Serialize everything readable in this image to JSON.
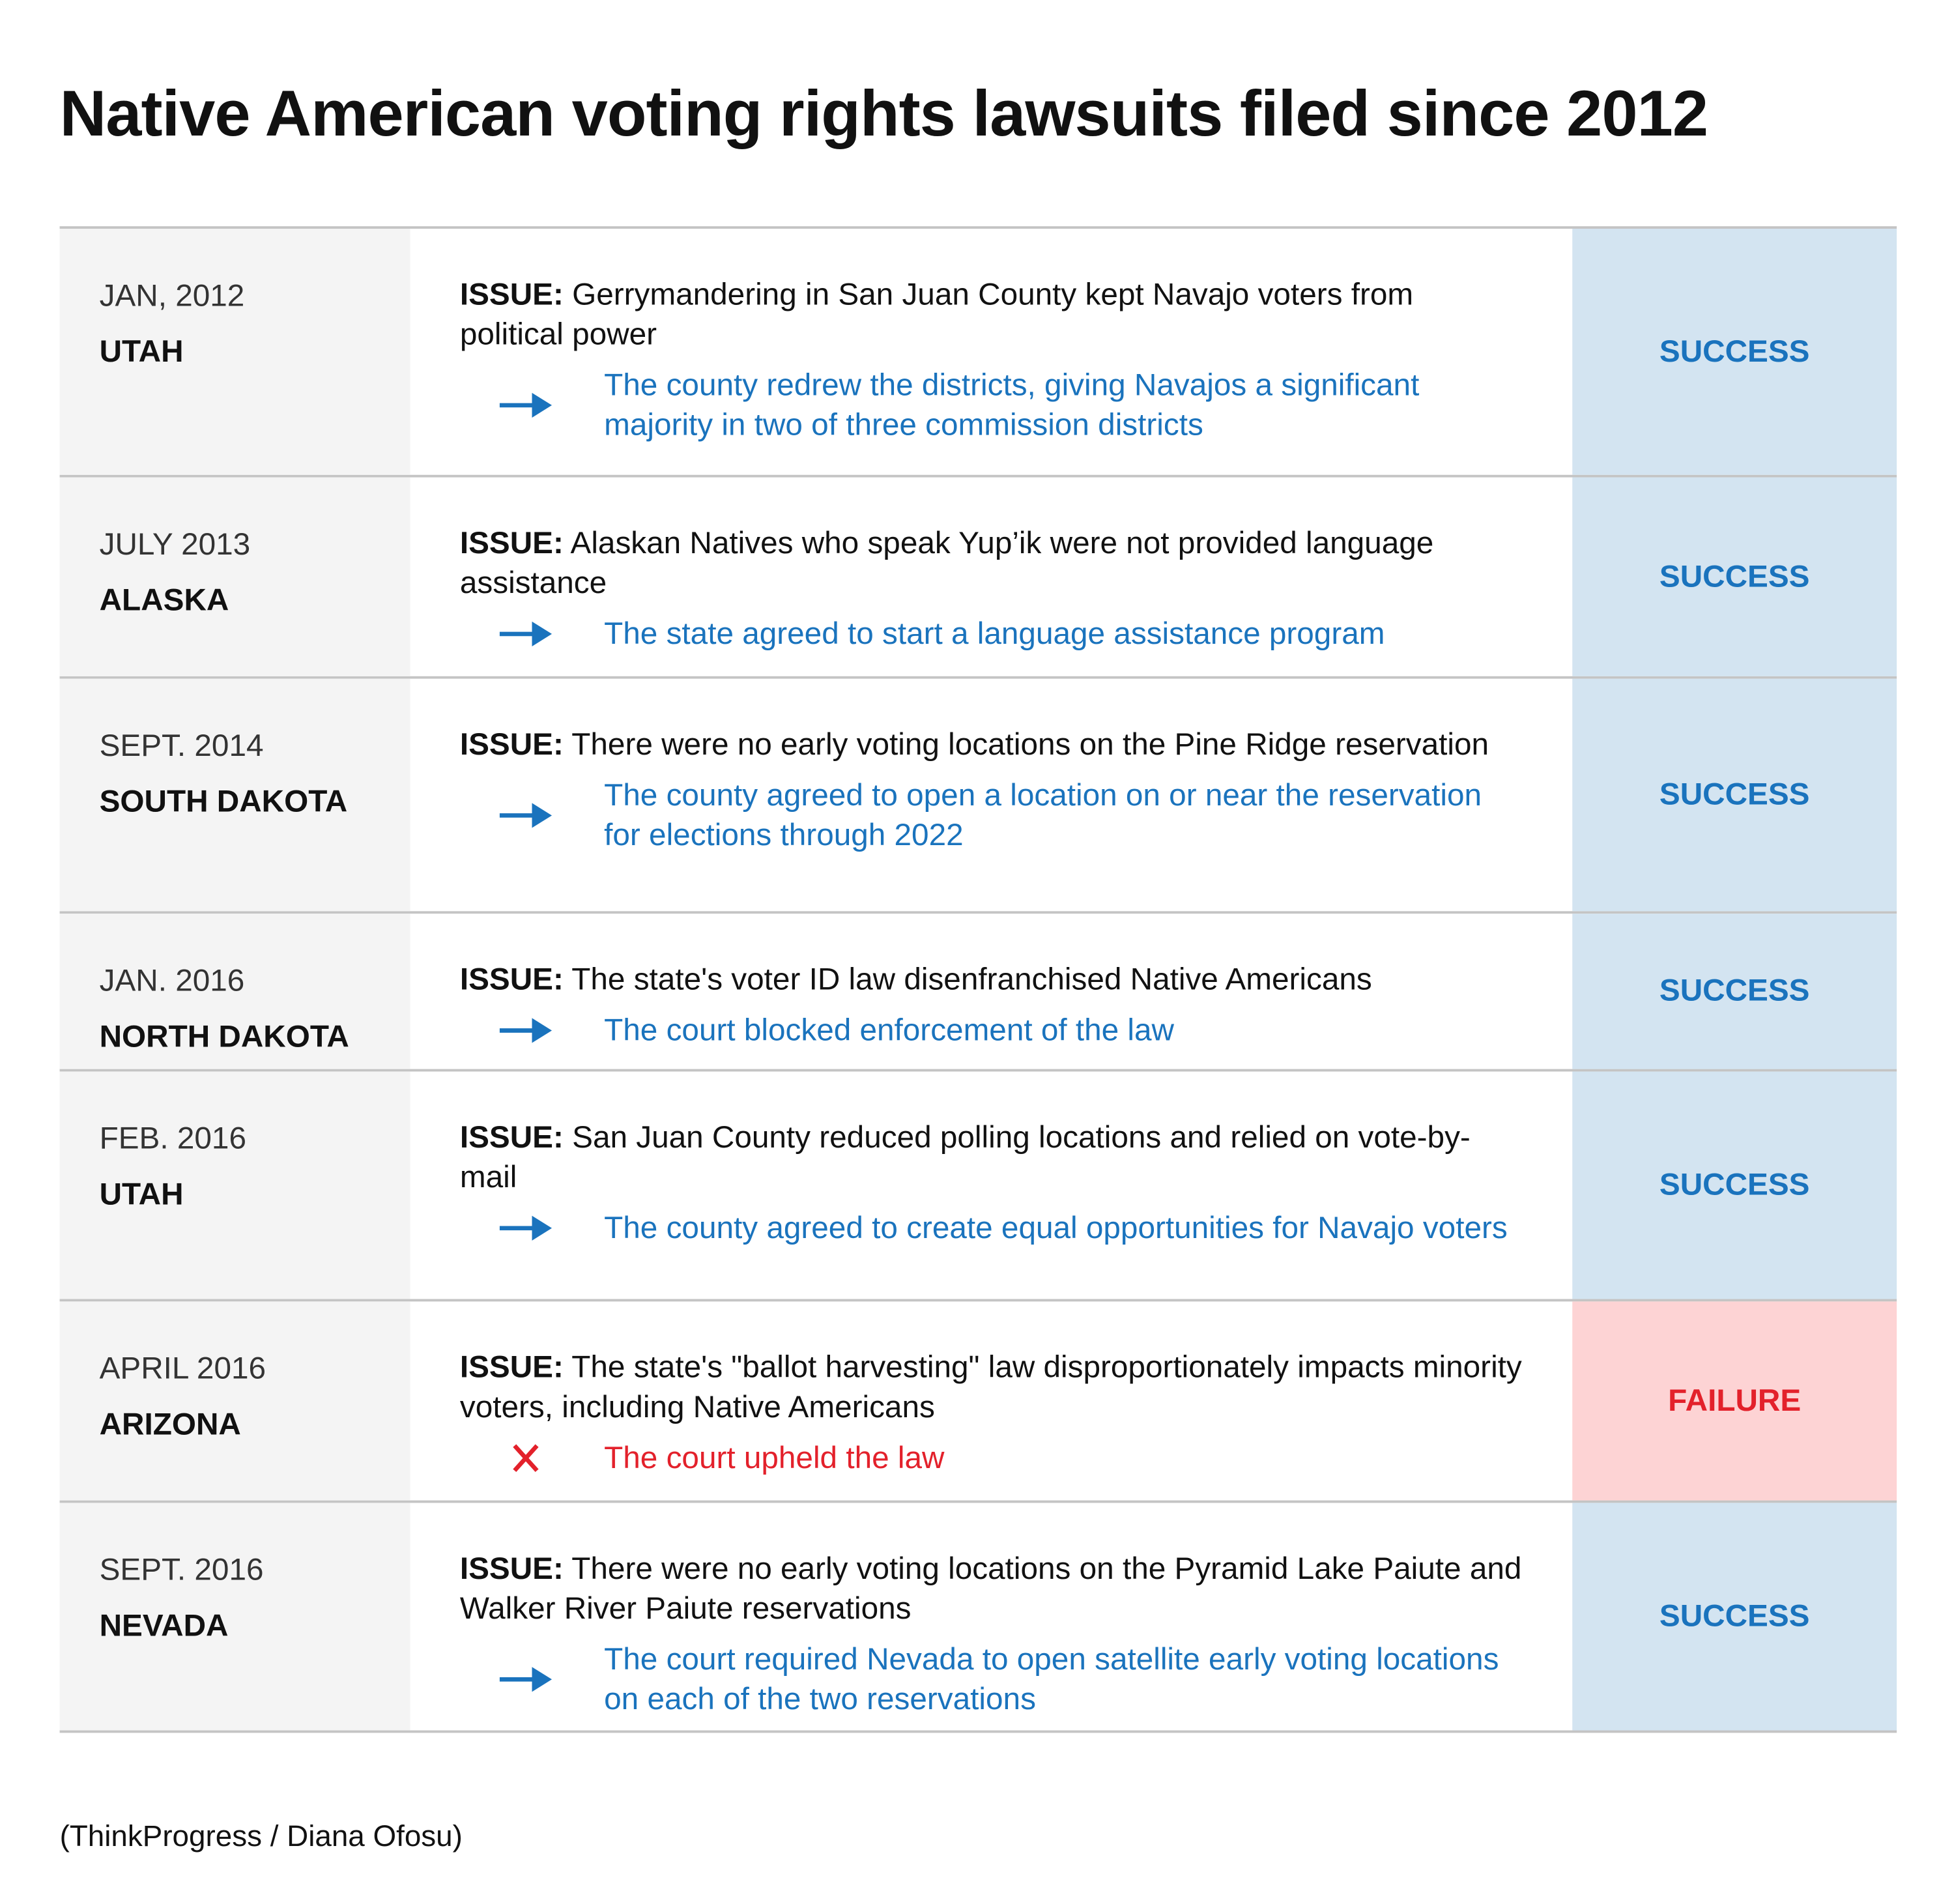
{
  "title": "Native American voting rights lawsuits filed since 2012",
  "issue_label": "ISSUE:",
  "rows": [
    {
      "date": "JAN, 2012",
      "state": "UTAH",
      "issue": "Gerrymandering in San Juan County kept Navajo voters from political power",
      "outcome": "The county redrew the districts, giving Navajos a significant majority in two of three commission districts",
      "status": "SUCCESS",
      "icon": "arrow",
      "color": "#1a73bd",
      "background": "#d3e4f1"
    },
    {
      "date": "JULY 2013",
      "state": "ALASKA",
      "issue": "Alaskan Natives who speak Yup’ik were not provided language assistance",
      "outcome": "The state agreed to start a language assistance program",
      "status": "SUCCESS",
      "icon": "arrow",
      "color": "#1a73bd",
      "background": "#d3e4f1"
    },
    {
      "date": "SEPT. 2014",
      "state": "SOUTH DAKOTA",
      "issue": "There were no early voting locations on the Pine Ridge reservation",
      "outcome": "The county agreed to open a location on or near the reservation for elections through 2022",
      "status": "SUCCESS",
      "icon": "arrow",
      "color": "#1a73bd",
      "background": "#d3e4f1"
    },
    {
      "date": "JAN. 2016",
      "state": "NORTH DAKOTA",
      "issue": "The state's voter ID law disenfranchised Native Americans",
      "outcome": "The court blocked enforcement of the law",
      "status": "SUCCESS",
      "icon": "arrow",
      "color": "#1a73bd",
      "background": "#d3e4f1"
    },
    {
      "date": "FEB. 2016",
      "state": "UTAH",
      "issue": "San Juan County reduced polling locations and relied on vote-by-mail",
      "outcome": "The county agreed to create equal opportunities for Navajo voters",
      "status": "SUCCESS",
      "icon": "arrow",
      "color": "#1a73bd",
      "background": "#d3e4f1"
    },
    {
      "date": "APRIL 2016",
      "state": "ARIZONA",
      "issue": "The state's \"ballot harvesting\" law disproportionately impacts minority voters, including Native Americans",
      "outcome": "The court upheld the law",
      "status": "FAILURE",
      "icon": "cross",
      "color": "#e3212b",
      "background": "#fdd3d4"
    },
    {
      "date": "SEPT. 2016",
      "state": "NEVADA",
      "issue": "There were no early voting locations on the Pyramid Lake Paiute and Walker River Paiute reservations",
      "outcome": "The court required Nevada to open satellite early voting locations on each of the two reservations",
      "status": "SUCCESS",
      "icon": "arrow",
      "color": "#1a73bd",
      "background": "#d3e4f1"
    }
  ],
  "source": "(ThinkProgress / Diana Ofosu)"
}
